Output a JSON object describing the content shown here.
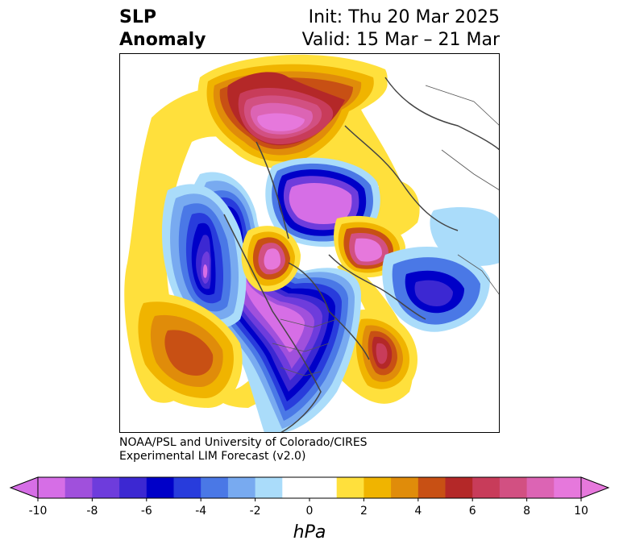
{
  "title": {
    "left_line1": "SLP",
    "left_line2": "Anomaly",
    "init": "Init: Thu 20 Mar 2025",
    "valid": "Valid: 15 Mar – 21 Mar"
  },
  "credit": {
    "line1": "NOAA/PSL and University of Colorado/CIRES",
    "line2": "Experimental LIM Forecast (v2.0)"
  },
  "colorbar": {
    "unit": "hPa",
    "ticks": [
      "-10",
      "-8",
      "-6",
      "-4",
      "-2",
      "0",
      "2",
      "4",
      "6",
      "8",
      "10"
    ],
    "min": -10,
    "max": 10,
    "colors": [
      "#d66ee6",
      "#a050dc",
      "#6e3cdc",
      "#3c28d2",
      "#0000c8",
      "#283cdc",
      "#4a78e6",
      "#78aaf0",
      "#aadcfa",
      "#ffffff",
      "#ffffff",
      "#ffe03c",
      "#f0b400",
      "#e08c0a",
      "#c85014",
      "#b42828",
      "#c83c5a",
      "#d25082",
      "#dc64b4",
      "#e678dc"
    ]
  }
}
